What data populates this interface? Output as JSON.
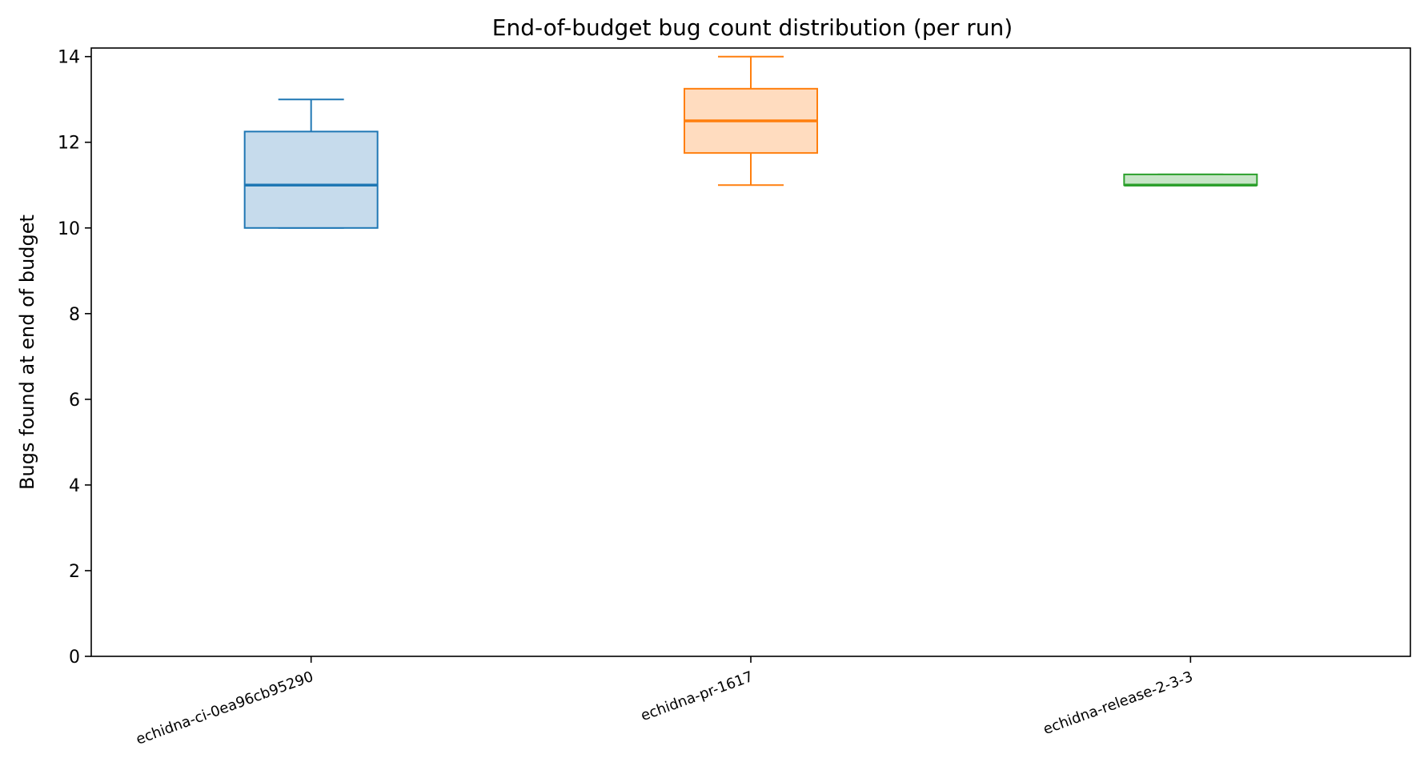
{
  "chart_data": {
    "type": "box",
    "title": "End-of-budget bug count distribution (per run)",
    "xlabel": "",
    "ylabel": "Bugs found at end of budget",
    "ylim": [
      0,
      14.2
    ],
    "yticks": [
      0,
      2,
      4,
      6,
      8,
      10,
      12,
      14
    ],
    "grid": false,
    "legend": "none",
    "categories": [
      "echidna-ci-0ea96cb95290",
      "echidna-pr-1617",
      "echidna-release-2-3-3"
    ],
    "boxes": [
      {
        "category": "echidna-ci-0ea96cb95290",
        "whisker_low": 10,
        "q1": 10,
        "median": 11,
        "q3": 12.25,
        "whisker_high": 13,
        "color": "#1f77b4",
        "fill": "#c6dbec"
      },
      {
        "category": "echidna-pr-1617",
        "whisker_low": 11,
        "q1": 11.75,
        "median": 12.5,
        "q3": 13.25,
        "whisker_high": 14,
        "color": "#ff7f0e",
        "fill": "#ffdcbf"
      },
      {
        "category": "echidna-release-2-3-3",
        "whisker_low": 11,
        "q1": 11,
        "median": 11,
        "q3": 11.25,
        "whisker_high": 11.25,
        "color": "#2ca02c",
        "fill": "#c7e5c7"
      }
    ]
  }
}
